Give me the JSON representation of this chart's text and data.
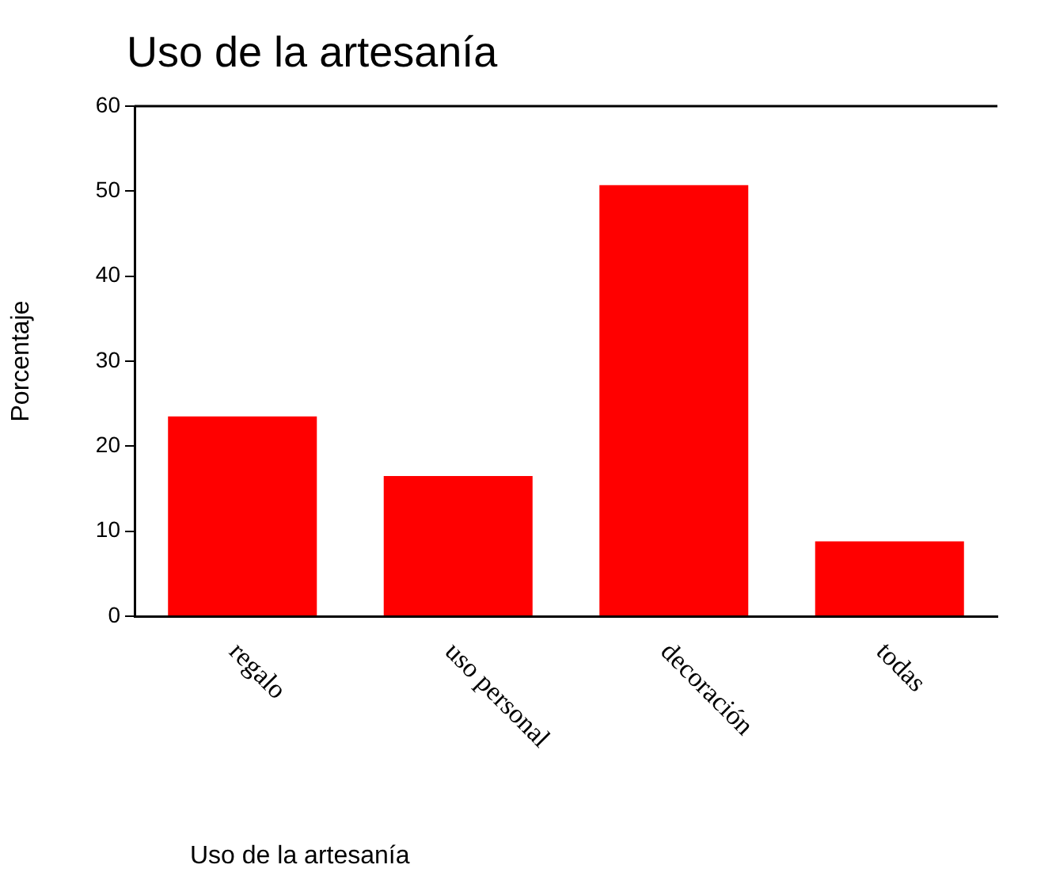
{
  "chart_data": {
    "type": "bar",
    "title": "Uso de la artesanía",
    "xlabel": "Uso de la artesanía",
    "ylabel": "Porcentaje",
    "categories": [
      "regalo",
      "uso personal",
      "decoración",
      "todas"
    ],
    "values": [
      23.5,
      16.5,
      50.7,
      8.8
    ],
    "color": "#ff0000",
    "ylim": [
      0,
      60
    ],
    "yticks": [
      0,
      10,
      20,
      30,
      40,
      50,
      60
    ],
    "grid": false
  }
}
